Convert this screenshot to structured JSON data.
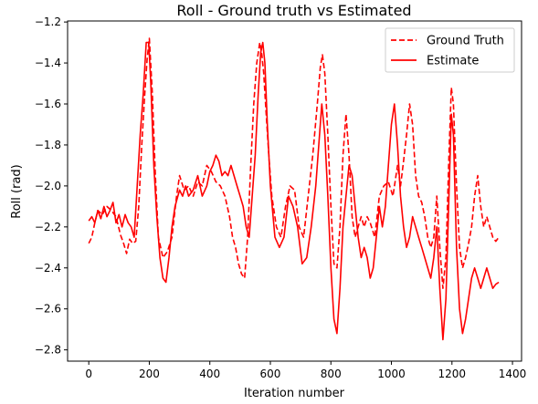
{
  "chart_data": {
    "type": "line",
    "title": "Roll - Ground truth vs Estimated",
    "xlabel": "Iteration number",
    "ylabel": "Roll (rad)",
    "xlim": [
      -70,
      1430
    ],
    "ylim": [
      -2.855,
      -1.195
    ],
    "xticks": [
      0,
      200,
      400,
      600,
      800,
      1000,
      1200,
      1400
    ],
    "yticks": [
      -2.8,
      -2.6,
      -2.4,
      -2.2,
      -2.0,
      -1.8,
      -1.6,
      -1.4,
      -1.2
    ],
    "legend_position": "upper right",
    "grid": false,
    "color": "#ff0000",
    "series": [
      {
        "name": "Ground Truth",
        "style": "dashed",
        "x": [
          0,
          10,
          20,
          30,
          45,
          60,
          75,
          90,
          105,
          115,
          125,
          135,
          145,
          155,
          165,
          175,
          185,
          193,
          200,
          210,
          220,
          230,
          245,
          260,
          275,
          290,
          300,
          315,
          330,
          345,
          360,
          375,
          390,
          405,
          420,
          435,
          450,
          465,
          475,
          485,
          495,
          505,
          515,
          525,
          535,
          545,
          555,
          565,
          572,
          578,
          585,
          595,
          605,
          620,
          635,
          650,
          665,
          680,
          695,
          710,
          725,
          740,
          755,
          765,
          772,
          780,
          790,
          800,
          810,
          820,
          830,
          840,
          850,
          860,
          870,
          880,
          890,
          900,
          910,
          920,
          930,
          945,
          960,
          975,
          990,
          1005,
          1020,
          1030,
          1040,
          1050,
          1060,
          1070,
          1080,
          1090,
          1100,
          1110,
          1120,
          1130,
          1140,
          1150,
          1160,
          1170,
          1180,
          1190,
          1198,
          1205,
          1215,
          1225,
          1235,
          1245,
          1255,
          1265,
          1275,
          1285,
          1295,
          1305,
          1315,
          1325,
          1335,
          1345,
          1355
        ],
        "y": [
          -2.28,
          -2.25,
          -2.18,
          -2.12,
          -2.14,
          -2.1,
          -2.12,
          -2.15,
          -2.24,
          -2.28,
          -2.33,
          -2.26,
          -2.28,
          -2.27,
          -2.1,
          -1.8,
          -1.55,
          -1.38,
          -1.28,
          -1.55,
          -1.95,
          -2.25,
          -2.35,
          -2.32,
          -2.25,
          -2.05,
          -1.95,
          -2.02,
          -2.0,
          -2.05,
          -1.98,
          -2.0,
          -1.9,
          -1.93,
          -1.98,
          -2.0,
          -2.05,
          -2.15,
          -2.25,
          -2.3,
          -2.38,
          -2.43,
          -2.45,
          -2.25,
          -1.9,
          -1.6,
          -1.4,
          -1.3,
          -1.36,
          -1.45,
          -1.62,
          -1.85,
          -2.05,
          -2.2,
          -2.25,
          -2.1,
          -2.0,
          -2.02,
          -2.2,
          -2.25,
          -2.05,
          -1.85,
          -1.6,
          -1.42,
          -1.36,
          -1.45,
          -1.75,
          -2.1,
          -2.38,
          -2.4,
          -2.2,
          -1.85,
          -1.65,
          -1.85,
          -2.15,
          -2.25,
          -2.2,
          -2.15,
          -2.2,
          -2.15,
          -2.18,
          -2.25,
          -2.05,
          -2.0,
          -1.98,
          -2.05,
          -1.9,
          -2.0,
          -1.88,
          -1.75,
          -1.6,
          -1.7,
          -1.95,
          -2.05,
          -2.08,
          -2.15,
          -2.25,
          -2.3,
          -2.25,
          -2.05,
          -2.3,
          -2.5,
          -2.35,
          -1.85,
          -1.52,
          -1.6,
          -2.0,
          -2.3,
          -2.4,
          -2.35,
          -2.28,
          -2.2,
          -2.05,
          -1.95,
          -2.1,
          -2.2,
          -2.15,
          -2.2,
          -2.25,
          -2.27,
          -2.25
        ]
      },
      {
        "name": "Estimate",
        "style": "solid",
        "x": [
          0,
          10,
          20,
          30,
          40,
          50,
          60,
          70,
          80,
          90,
          100,
          110,
          120,
          130,
          140,
          150,
          160,
          170,
          180,
          190,
          198,
          205,
          215,
          225,
          235,
          245,
          255,
          265,
          275,
          285,
          300,
          310,
          320,
          330,
          345,
          360,
          375,
          390,
          400,
          410,
          420,
          430,
          440,
          450,
          460,
          470,
          480,
          490,
          500,
          510,
          520,
          530,
          540,
          550,
          560,
          568,
          575,
          582,
          590,
          600,
          615,
          630,
          645,
          660,
          675,
          690,
          705,
          720,
          735,
          750,
          760,
          770,
          780,
          790,
          800,
          810,
          820,
          830,
          840,
          850,
          860,
          870,
          880,
          890,
          900,
          910,
          920,
          930,
          940,
          950,
          960,
          970,
          980,
          990,
          1000,
          1010,
          1020,
          1030,
          1040,
          1050,
          1060,
          1070,
          1080,
          1090,
          1100,
          1110,
          1120,
          1130,
          1140,
          1150,
          1160,
          1170,
          1180,
          1190,
          1198,
          1205,
          1215,
          1225,
          1235,
          1245,
          1255,
          1265,
          1275,
          1285,
          1295,
          1305,
          1315,
          1325,
          1335,
          1345,
          1355
        ],
        "y": [
          -2.17,
          -2.15,
          -2.18,
          -2.12,
          -2.16,
          -2.1,
          -2.15,
          -2.12,
          -2.08,
          -2.18,
          -2.14,
          -2.2,
          -2.14,
          -2.18,
          -2.2,
          -2.25,
          -2.0,
          -1.75,
          -1.55,
          -1.3,
          -1.3,
          -1.5,
          -1.9,
          -2.15,
          -2.35,
          -2.45,
          -2.47,
          -2.35,
          -2.2,
          -2.1,
          -2.02,
          -2.05,
          -2.0,
          -2.05,
          -2.02,
          -1.95,
          -2.05,
          -2.0,
          -1.93,
          -1.9,
          -1.85,
          -1.88,
          -1.95,
          -1.93,
          -1.95,
          -1.9,
          -1.95,
          -2.0,
          -2.05,
          -2.1,
          -2.2,
          -2.25,
          -2.05,
          -1.85,
          -1.55,
          -1.35,
          -1.3,
          -1.4,
          -1.7,
          -2.0,
          -2.25,
          -2.3,
          -2.25,
          -2.05,
          -2.1,
          -2.2,
          -2.38,
          -2.35,
          -2.2,
          -2.0,
          -1.8,
          -1.6,
          -1.75,
          -2.05,
          -2.4,
          -2.65,
          -2.72,
          -2.5,
          -2.2,
          -2.05,
          -1.9,
          -1.95,
          -2.1,
          -2.25,
          -2.35,
          -2.3,
          -2.35,
          -2.45,
          -2.4,
          -2.25,
          -2.1,
          -2.2,
          -2.1,
          -1.9,
          -1.7,
          -1.6,
          -1.8,
          -2.05,
          -2.2,
          -2.3,
          -2.25,
          -2.15,
          -2.2,
          -2.25,
          -2.3,
          -2.35,
          -2.4,
          -2.45,
          -2.35,
          -2.2,
          -2.5,
          -2.75,
          -2.55,
          -2.05,
          -1.65,
          -1.75,
          -2.3,
          -2.6,
          -2.72,
          -2.65,
          -2.55,
          -2.45,
          -2.4,
          -2.45,
          -2.5,
          -2.45,
          -2.4,
          -2.45,
          -2.5,
          -2.48,
          -2.47
        ]
      }
    ]
  }
}
